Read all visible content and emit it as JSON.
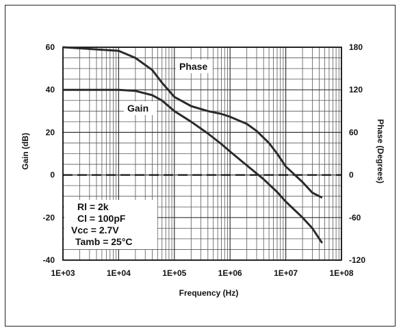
{
  "chart_data": {
    "type": "line",
    "x_scale": "log",
    "xlabel": "Frequency (Hz)",
    "ylabel": "Gain (dB)",
    "y2label": "Phase (Degrees)",
    "xlim": [
      1000,
      100000000
    ],
    "ylim": [
      -40,
      60
    ],
    "y2lim": [
      -120,
      180
    ],
    "x_tick_labels": [
      "1E+03",
      "1E+04",
      "1E+05",
      "1E+06",
      "1E+07",
      "1E+08"
    ],
    "y_tick_labels": [
      "60",
      "40",
      "20",
      "0",
      "-20",
      "-40"
    ],
    "y2_tick_labels": [
      "180",
      "120",
      "60",
      "0",
      "-60",
      "-120"
    ],
    "grid": true,
    "annotations": [
      "Phase",
      "Gain"
    ],
    "conditions": [
      "Rl = 2k",
      "Cl = 100pF",
      "Vcc = 2.7V",
      "Tamb = 25°C"
    ],
    "series": [
      {
        "name": "Gain",
        "axis": "left",
        "x": [
          1000,
          10000,
          20000,
          40000,
          60000,
          100000,
          200000,
          400000,
          700000,
          1000000,
          2000000,
          4000000,
          7000000,
          10000000,
          20000000,
          30000000,
          45000000
        ],
        "y": [
          40,
          40,
          39.5,
          37.5,
          35,
          30,
          25,
          19.5,
          14.5,
          11,
          4.5,
          -2,
          -8,
          -12.5,
          -20,
          -25,
          -32
        ]
      },
      {
        "name": "Phase",
        "axis": "right",
        "x": [
          1000,
          10000,
          20000,
          40000,
          60000,
          100000,
          200000,
          400000,
          700000,
          1000000,
          2000000,
          3000000,
          5000000,
          7000000,
          10000000,
          20000000,
          30000000,
          45000000
        ],
        "y": [
          180,
          175,
          165,
          148,
          130,
          110,
          97,
          90,
          86,
          82,
          72,
          62,
          45,
          30,
          12,
          -10,
          -25,
          -32
        ]
      }
    ],
    "colors": {
      "curve": "#2a2a2a",
      "grid": "#555555",
      "zero_line": "#111111"
    }
  }
}
